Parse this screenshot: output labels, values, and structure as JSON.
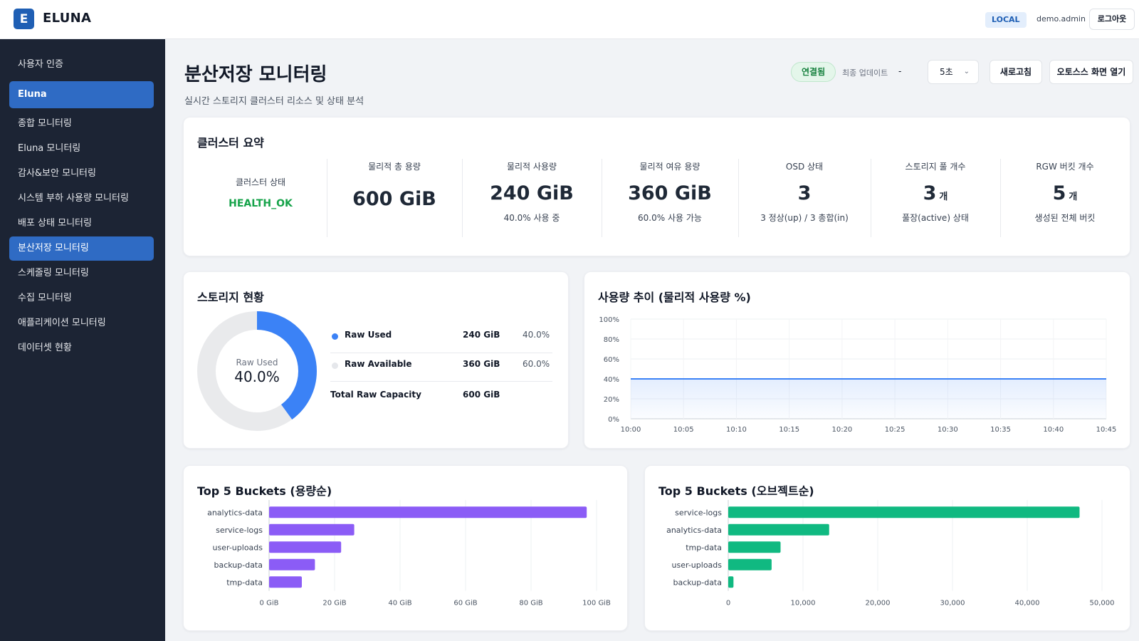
{
  "header": {
    "logo_letter": "E",
    "brand": "ELUNA",
    "env_badge": "LOCAL",
    "username": "demo.admin",
    "logout_label": "로그아웃"
  },
  "sidebar": {
    "items": [
      {
        "label": "사용자 인증",
        "active": false
      },
      {
        "label": "Eluna",
        "active": true
      },
      {
        "label": "종합 모니터링",
        "active": false
      },
      {
        "label": "Eluna 모니터링",
        "active": false
      },
      {
        "label": "감사&보안 모니터링",
        "active": false
      },
      {
        "label": "시스템 부하 사용량 모니터링",
        "active": false
      },
      {
        "label": "배포 상태 모니터링",
        "active": false
      },
      {
        "label": "분산저장 모니터링",
        "active": true
      },
      {
        "label": "스케줄링 모니터링",
        "active": false
      },
      {
        "label": "수집 모니터링",
        "active": false
      },
      {
        "label": "애플리케이션 모니터링",
        "active": false
      },
      {
        "label": "데이터셋 현황",
        "active": false
      }
    ]
  },
  "page": {
    "title": "분산저장 모니터링",
    "subtitle": "실시간 스토리지 클러스터 리소스 및 상태 분석",
    "connection_status": "연결됨",
    "last_update_label": "최종 업데이트",
    "last_update_value": "-",
    "interval_value": "5초",
    "refresh_label": "새로고침",
    "open_os_label": "오토스스 화면 열기"
  },
  "summary": {
    "title": "클러스터 요약",
    "health_label": "클러스터 상태",
    "health_value": "HEALTH_OK",
    "total_label": "물리적 총 용량",
    "total_value": "600 GiB",
    "used_label": "물리적 사용량",
    "used_value": "240 GiB",
    "used_sub": "40.0% 사용 중",
    "free_label": "물리적 여유 용량",
    "free_value": "360 GiB",
    "free_sub": "60.0% 사용 가능",
    "osd_label": "OSD 상태",
    "osd_value": "3",
    "osd_sub": "3 정상(up) / 3 총합(in)",
    "pool_label": "스토리지 풀 개수",
    "pool_value": "3",
    "pool_unit": "개",
    "pool_sub": "풀장(active) 상태",
    "rgw_label": "RGW 버킷 개수",
    "rgw_value": "5",
    "rgw_unit": "개",
    "rgw_sub": "생성된 전체 버킷"
  },
  "storage": {
    "title": "스토리지 현황",
    "donut_label": "Raw Used",
    "donut_value": "40.0%",
    "used_fraction": 0.4,
    "rows": [
      {
        "name": "Raw Used",
        "value": "240 GiB",
        "percent": "40.0%",
        "color": "#3b82f6"
      },
      {
        "name": "Raw Available",
        "value": "360 GiB",
        "percent": "60.0%",
        "color": "#e5e7eb"
      }
    ],
    "total_name": "Total Raw Capacity",
    "total_value": "600 GiB"
  },
  "colors": {
    "accent": "#2f6bc4",
    "used": "#3b82f6",
    "purple": "#8b5cf6",
    "green": "#10b981",
    "health": "#16a34a"
  },
  "chart_data": [
    {
      "type": "area",
      "title": "사용량 추이 (물리적 사용량 %)",
      "x": [
        "10:00",
        "10:05",
        "10:10",
        "10:15",
        "10:20",
        "10:25",
        "10:30",
        "10:35",
        "10:40",
        "10:45"
      ],
      "y_ticks": [
        "0%",
        "20%",
        "40%",
        "60%",
        "80%",
        "100%"
      ],
      "series": [
        {
          "values": [
            40,
            40,
            40,
            40,
            40,
            40,
            40,
            40,
            40,
            40
          ]
        }
      ],
      "ylim": [
        0,
        100
      ],
      "grid": true
    },
    {
      "type": "bar",
      "orientation": "horizontal",
      "title": "Top 5 Buckets (용량순)",
      "categories": [
        "analytics-data",
        "service-logs",
        "user-uploads",
        "backup-data",
        "tmp-data"
      ],
      "values": [
        97,
        26,
        22,
        14,
        10
      ],
      "x_ticks": [
        "0 GiB",
        "20 GiB",
        "40 GiB",
        "60 GiB",
        "80 GiB",
        "100 GiB"
      ],
      "xlim": [
        0,
        100
      ]
    },
    {
      "type": "bar",
      "orientation": "horizontal",
      "title": "Top 5 Buckets (오브젝트순)",
      "categories": [
        "service-logs",
        "analytics-data",
        "tmp-data",
        "user-uploads",
        "backup-data"
      ],
      "values": [
        47000,
        13500,
        7000,
        5800,
        700
      ],
      "x_ticks": [
        "0",
        "10,000",
        "20,000",
        "30,000",
        "40,000",
        "50,000"
      ],
      "xlim": [
        0,
        50000
      ]
    }
  ]
}
